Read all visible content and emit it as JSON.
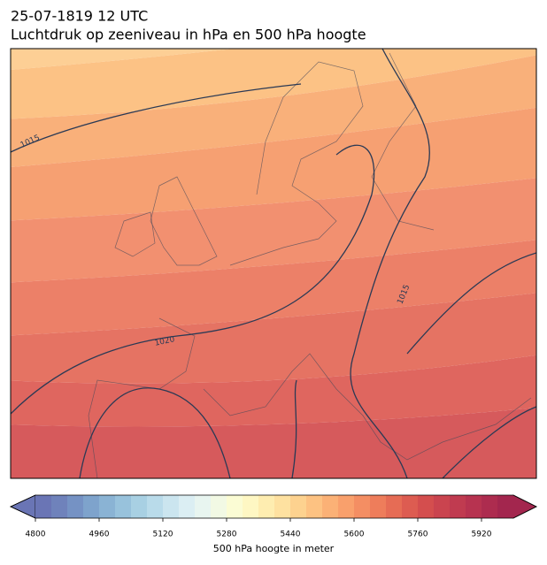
{
  "header": {
    "title": "25-07-1819 12 UTC",
    "subtitle": "Luchtdruk op zeeniveau in hPa en 500 hPa hoogte"
  },
  "contour_labels": [
    "1015",
    "1020",
    "1015"
  ],
  "colorbar": {
    "label": "500 hPa hoogte in meter",
    "lim": [
      4800,
      6000
    ],
    "ticks": [
      4800,
      4960,
      5120,
      5280,
      5440,
      5600,
      5760,
      5920
    ],
    "colors": [
      "#6a75b5",
      "#6f82bb",
      "#7592c4",
      "#7ea3cc",
      "#8ab3d4",
      "#98c2dc",
      "#a8d0e3",
      "#b9dbea",
      "#cbe5ef",
      "#dbeef3",
      "#e8f5f0",
      "#f2f9e4",
      "#fbfcd4",
      "#fef7c3",
      "#feedb0",
      "#fee1a0",
      "#fdd28f",
      "#fdc282",
      "#fbb176",
      "#f9a06c",
      "#f48e63",
      "#ee7d5b",
      "#e66c55",
      "#dd5c51",
      "#d44e4e",
      "#ca444f",
      "#c03b50",
      "#b73350",
      "#ad2c4f",
      "#a3264e"
    ]
  }
}
